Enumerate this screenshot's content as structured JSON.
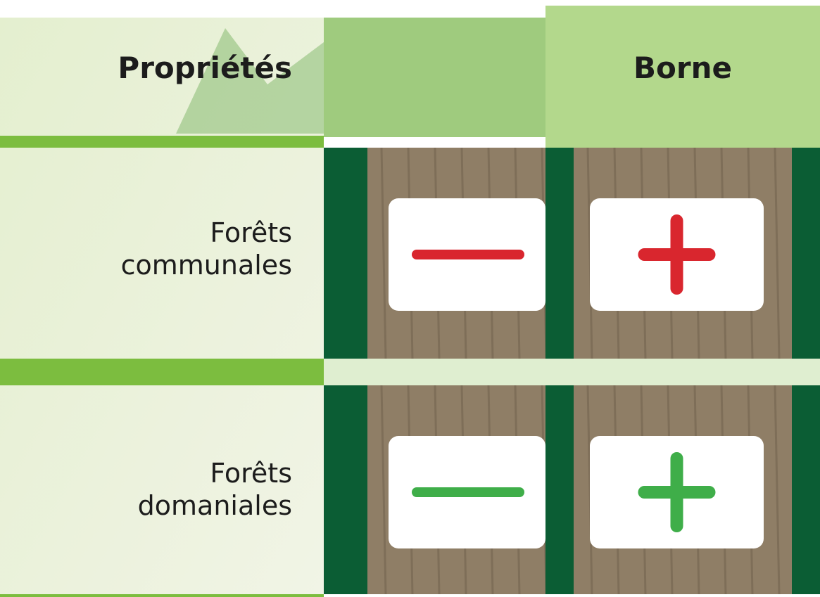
{
  "header": {
    "columns": [
      "Propriétés",
      "Borne"
    ]
  },
  "table": {
    "rows": [
      [
        "Forêts\ncommunales"
      ],
      [
        "Forêts\ndomaniales"
      ]
    ]
  }
}
